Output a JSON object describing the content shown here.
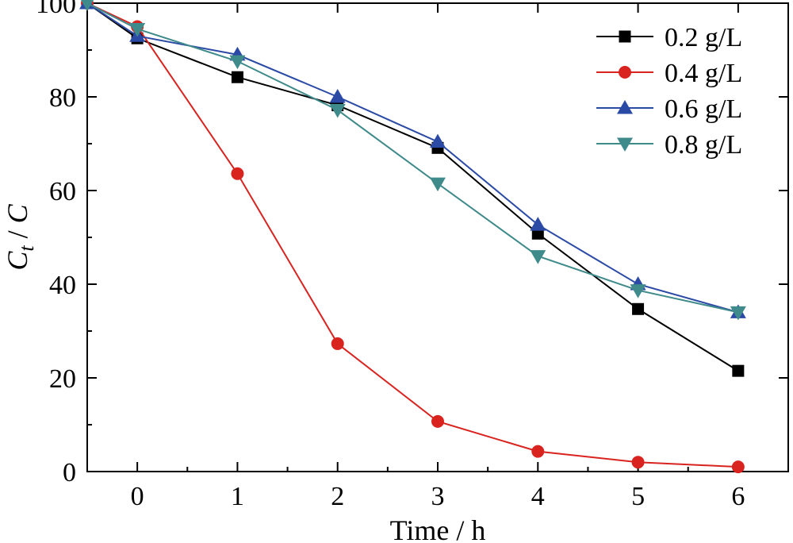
{
  "chart_data": {
    "type": "line",
    "xlabel": "Time / h",
    "ylabel": "C_t / C",
    "xlim": [
      -0.5,
      6.5
    ],
    "ylim": [
      0,
      100
    ],
    "xticks": [
      "0",
      "1",
      "2",
      "3",
      "4",
      "5",
      "6"
    ],
    "yticks": [
      "0",
      "20",
      "40",
      "60",
      "80",
      "100"
    ],
    "legend_position": "top-right",
    "grid": false,
    "series": [
      {
        "name": "0.2 g/L",
        "color": "#000000",
        "marker": "square",
        "x": [
          -0.5,
          0,
          1,
          2,
          3,
          4,
          5,
          6
        ],
        "y": [
          100,
          92.5,
          84.2,
          78.2,
          69.1,
          50.8,
          34.7,
          21.5
        ]
      },
      {
        "name": "0.4 g/L",
        "color": "#d9231f",
        "marker": "circle",
        "x": [
          -0.5,
          0,
          1,
          2,
          3,
          4,
          5,
          6
        ],
        "y": [
          100,
          95.0,
          63.6,
          27.3,
          10.7,
          4.3,
          2.0,
          1.0
        ]
      },
      {
        "name": "0.6 g/L",
        "color": "#2b4aa6",
        "marker": "triangle-up",
        "x": [
          -0.5,
          0,
          1,
          2,
          3,
          4,
          5,
          6
        ],
        "y": [
          100,
          93.0,
          89.0,
          80.0,
          70.4,
          52.7,
          40.0,
          34.0
        ]
      },
      {
        "name": "0.8 g/L",
        "color": "#3f8a8a",
        "marker": "triangle-down",
        "x": [
          -0.5,
          0,
          1,
          2,
          3,
          4,
          5,
          6
        ],
        "y": [
          100,
          94.5,
          87.6,
          77.2,
          61.5,
          46.0,
          38.7,
          34.0
        ]
      }
    ]
  }
}
